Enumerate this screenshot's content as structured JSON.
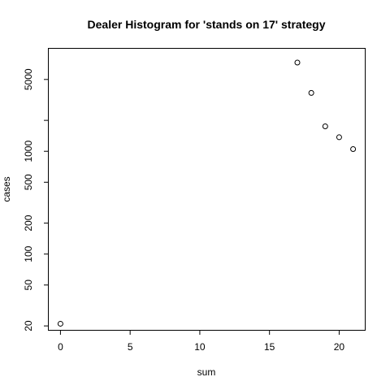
{
  "chart_data": {
    "type": "scatter",
    "title": "Dealer Histogram for 'stands on 17' strategy",
    "xlabel": "sum",
    "ylabel": "cases",
    "xlim": [
      -0.84,
      21.84
    ],
    "ylim": [
      18.3,
      9950
    ],
    "y_scale": "log",
    "x_ticks": [
      0,
      5,
      10,
      15,
      20
    ],
    "x_tick_labels": [
      "0",
      "5",
      "10",
      "15",
      "20"
    ],
    "y_ticks": [
      20,
      50,
      100,
      200,
      500,
      1000,
      2000,
      5000
    ],
    "y_tick_labels": [
      "20",
      "50",
      "100",
      "200",
      "500",
      "1000",
      "",
      "5000"
    ],
    "grid": false,
    "points": [
      {
        "x": 0,
        "y": 21
      },
      {
        "x": 17,
        "y": 7300
      },
      {
        "x": 18,
        "y": 3700
      },
      {
        "x": 19,
        "y": 1750
      },
      {
        "x": 20,
        "y": 1370
      },
      {
        "x": 21,
        "y": 1050
      }
    ]
  }
}
